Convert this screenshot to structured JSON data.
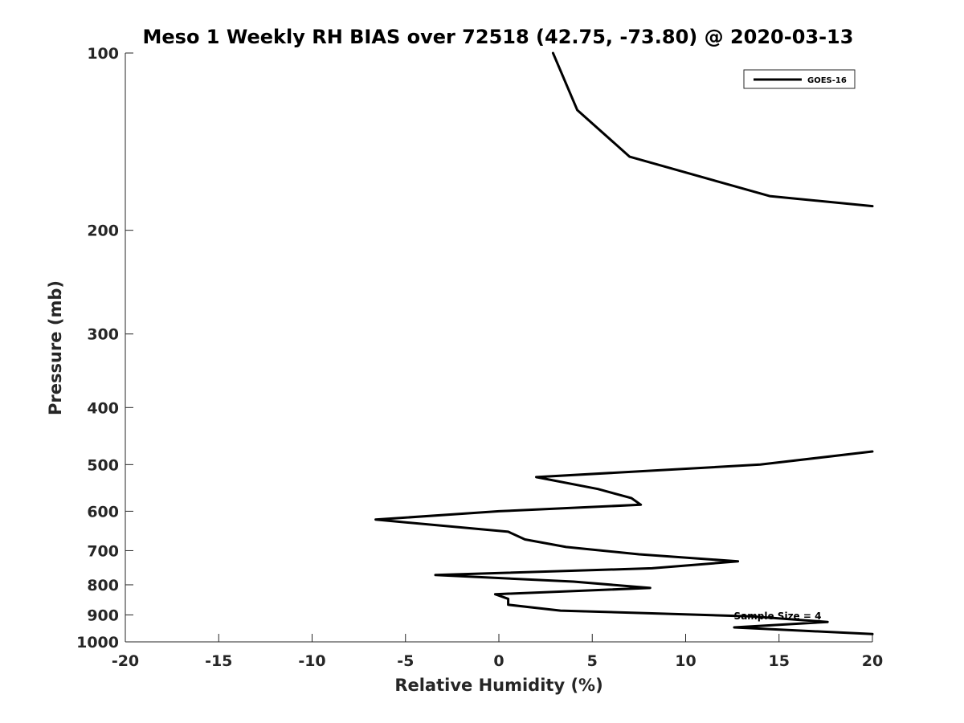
{
  "chart_data": {
    "type": "line",
    "title": "Meso 1 Weekly RH BIAS over 72518 (42.75, -73.80) @ 2020-03-13",
    "xlabel": "Relative Humidity (%)",
    "ylabel": "Pressure (mb)",
    "xlim": [
      -20,
      20
    ],
    "ylim": [
      100,
      1000
    ],
    "y_scale": "log",
    "y_reversed": true,
    "x_ticks": [
      "-20",
      "-15",
      "-10",
      "-5",
      "0",
      "5",
      "10",
      "15",
      "20"
    ],
    "y_ticks": [
      "100",
      "200",
      "300",
      "400",
      "500",
      "600",
      "700",
      "800",
      "900",
      "1000"
    ],
    "grid": false,
    "legend": {
      "placement": "top-right",
      "entries": [
        "GOES-16"
      ]
    },
    "annotations": [
      "Sample Size = 4"
    ],
    "series": [
      {
        "name": "GOES-16",
        "color": "#000000",
        "segments": [
          [
            {
              "x": 2.9,
              "p": 100
            },
            {
              "x": 4.2,
              "p": 125
            },
            {
              "x": 7.0,
              "p": 150
            },
            {
              "x": 14.5,
              "p": 175
            },
            {
              "x": 20.0,
              "p": 182
            }
          ],
          [
            {
              "x": 20.0,
              "p": 475
            },
            {
              "x": 14.0,
              "p": 500
            },
            {
              "x": 2.0,
              "p": 525
            },
            {
              "x": 5.3,
              "p": 550
            },
            {
              "x": 7.1,
              "p": 570
            },
            {
              "x": 7.6,
              "p": 585
            },
            {
              "x": 0.0,
              "p": 600
            },
            {
              "x": -6.6,
              "p": 620
            },
            {
              "x": 0.5,
              "p": 650
            },
            {
              "x": 1.4,
              "p": 670
            },
            {
              "x": 3.6,
              "p": 690
            },
            {
              "x": 7.5,
              "p": 710
            },
            {
              "x": 12.8,
              "p": 730
            },
            {
              "x": 8.2,
              "p": 750
            },
            {
              "x": -3.4,
              "p": 770
            },
            {
              "x": 4.0,
              "p": 790
            },
            {
              "x": 8.1,
              "p": 810
            },
            {
              "x": -0.2,
              "p": 830
            },
            {
              "x": 0.5,
              "p": 845
            },
            {
              "x": 0.5,
              "p": 865
            },
            {
              "x": 3.3,
              "p": 885
            },
            {
              "x": 13.5,
              "p": 905
            },
            {
              "x": 17.6,
              "p": 925
            },
            {
              "x": 12.6,
              "p": 945
            },
            {
              "x": 20.0,
              "p": 970
            }
          ]
        ]
      }
    ]
  }
}
